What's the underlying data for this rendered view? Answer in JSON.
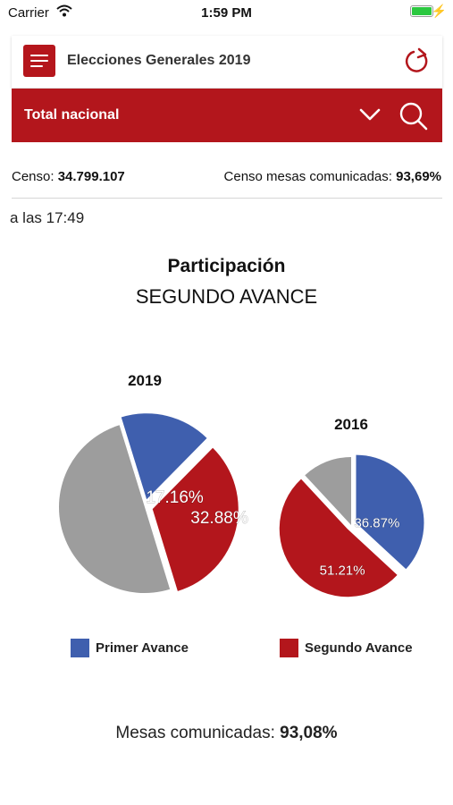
{
  "status_bar": {
    "carrier": "Carrier",
    "time": "1:59 PM"
  },
  "header": {
    "title": "Elecciones Generales 2019",
    "region": "Total nacional"
  },
  "censo": {
    "label": "Censo:",
    "value": "34.799.107",
    "mesas_label": "Censo mesas comunicadas:",
    "mesas_value": "93,69%"
  },
  "updated_time": "a las 17:49",
  "participacion": {
    "title": "Participación",
    "subtitle": "SEGUNDO AVANCE"
  },
  "legend": {
    "primer": "Primer Avance",
    "segundo": "Segundo Avance"
  },
  "mesas_comunicadas": {
    "label": "Mesas comunicadas:",
    "value": "93,08%"
  },
  "colors": {
    "brand_red": "#b3161c",
    "primer": "#3f5fae",
    "segundo": "#b3161c",
    "rest": "#9d9d9d"
  },
  "chart_data": [
    {
      "type": "pie",
      "title": "2019",
      "series": [
        {
          "name": "Primer Avance",
          "value": 17.16,
          "label": "17.16%"
        },
        {
          "name": "Segundo Avance",
          "value": 32.88,
          "label": "32.88%"
        }
      ]
    },
    {
      "type": "pie",
      "title": "2016",
      "series": [
        {
          "name": "Primer Avance",
          "value": 36.87,
          "label": "36.87%"
        },
        {
          "name": "Segundo Avance",
          "value": 51.21,
          "label": "51.21%"
        }
      ]
    }
  ]
}
